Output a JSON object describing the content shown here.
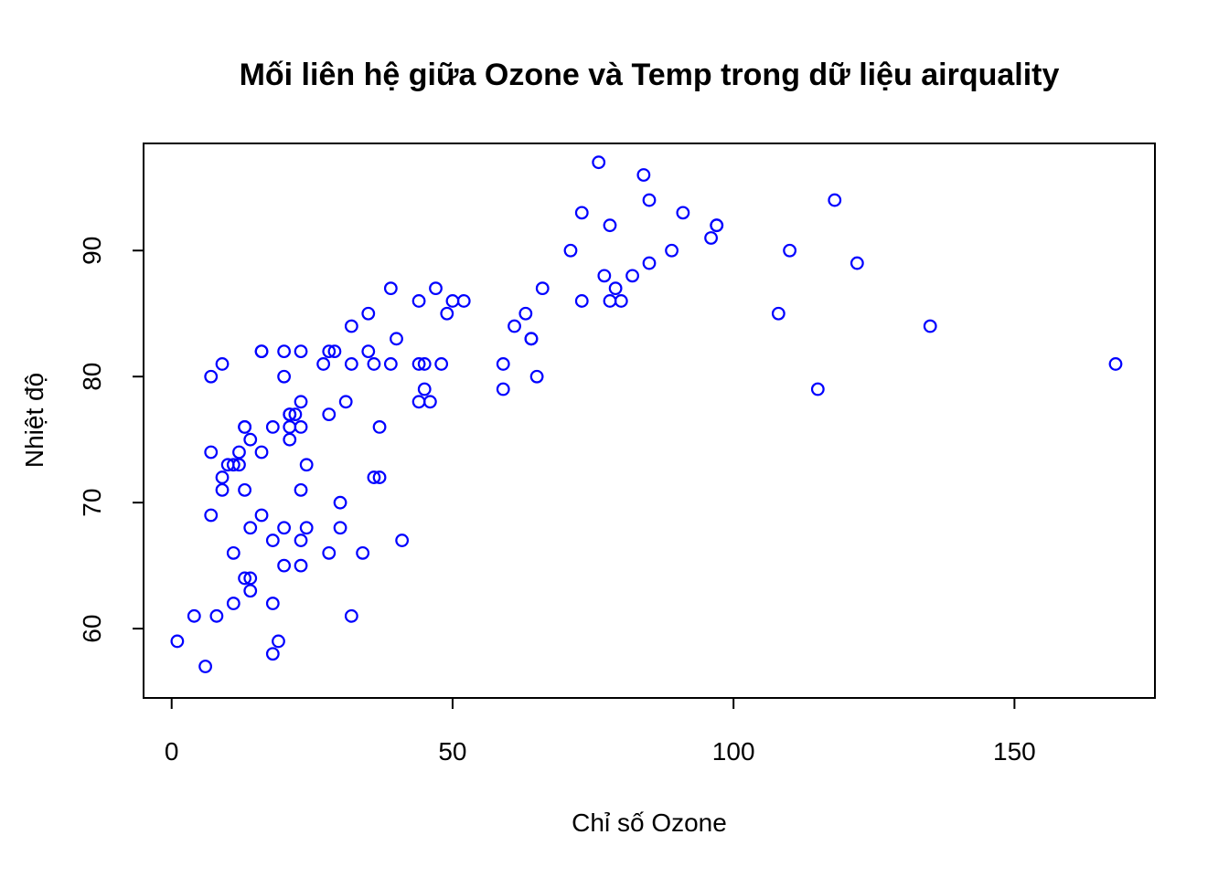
{
  "chart_data": {
    "type": "scatter",
    "title": "Mối liên hệ giữa Ozone và Temp trong dữ liệu airquality",
    "xlabel": "Chỉ số Ozone",
    "ylabel": "Nhiệt độ",
    "xlim": [
      -5,
      175
    ],
    "ylim": [
      54.5,
      98.5
    ],
    "x_ticks": [
      0,
      50,
      100,
      150
    ],
    "y_ticks": [
      60,
      70,
      80,
      90
    ],
    "grid": false,
    "legend": "none",
    "point_color": "#0000ff",
    "points": [
      [
        41,
        67
      ],
      [
        36,
        72
      ],
      [
        12,
        74
      ],
      [
        18,
        62
      ],
      [
        28,
        66
      ],
      [
        23,
        65
      ],
      [
        19,
        59
      ],
      [
        8,
        61
      ],
      [
        7,
        74
      ],
      [
        16,
        69
      ],
      [
        11,
        66
      ],
      [
        14,
        68
      ],
      [
        18,
        58
      ],
      [
        14,
        64
      ],
      [
        34,
        66
      ],
      [
        6,
        57
      ],
      [
        30,
        68
      ],
      [
        11,
        62
      ],
      [
        1,
        59
      ],
      [
        11,
        73
      ],
      [
        4,
        61
      ],
      [
        32,
        61
      ],
      [
        23,
        67
      ],
      [
        45,
        81
      ],
      [
        115,
        79
      ],
      [
        37,
        76
      ],
      [
        29,
        82
      ],
      [
        71,
        90
      ],
      [
        39,
        87
      ],
      [
        23,
        82
      ],
      [
        21,
        77
      ],
      [
        37,
        72
      ],
      [
        20,
        65
      ],
      [
        12,
        73
      ],
      [
        13,
        76
      ],
      [
        135,
        84
      ],
      [
        49,
        85
      ],
      [
        32,
        81
      ],
      [
        64,
        83
      ],
      [
        40,
        83
      ],
      [
        77,
        88
      ],
      [
        97,
        92
      ],
      [
        97,
        92
      ],
      [
        85,
        89
      ],
      [
        10,
        73
      ],
      [
        27,
        81
      ],
      [
        7,
        80
      ],
      [
        48,
        81
      ],
      [
        35,
        82
      ],
      [
        61,
        84
      ],
      [
        79,
        87
      ],
      [
        63,
        85
      ],
      [
        16,
        74
      ],
      [
        80,
        86
      ],
      [
        108,
        85
      ],
      [
        20,
        82
      ],
      [
        52,
        86
      ],
      [
        82,
        88
      ],
      [
        50,
        86
      ],
      [
        64,
        83
      ],
      [
        59,
        81
      ],
      [
        39,
        81
      ],
      [
        9,
        81
      ],
      [
        16,
        82
      ],
      [
        78,
        86
      ],
      [
        35,
        85
      ],
      [
        66,
        87
      ],
      [
        122,
        89
      ],
      [
        89,
        90
      ],
      [
        110,
        90
      ],
      [
        44,
        86
      ],
      [
        28,
        82
      ],
      [
        65,
        80
      ],
      [
        22,
        77
      ],
      [
        59,
        79
      ],
      [
        23,
        76
      ],
      [
        31,
        78
      ],
      [
        44,
        78
      ],
      [
        21,
        77
      ],
      [
        9,
        72
      ],
      [
        45,
        79
      ],
      [
        168,
        81
      ],
      [
        73,
        86
      ],
      [
        76,
        97
      ],
      [
        118,
        94
      ],
      [
        84,
        96
      ],
      [
        85,
        94
      ],
      [
        96,
        91
      ],
      [
        78,
        92
      ],
      [
        73,
        93
      ],
      [
        91,
        93
      ],
      [
        47,
        87
      ],
      [
        32,
        84
      ],
      [
        20,
        80
      ],
      [
        23,
        78
      ],
      [
        21,
        75
      ],
      [
        24,
        73
      ],
      [
        44,
        81
      ],
      [
        21,
        76
      ],
      [
        28,
        77
      ],
      [
        9,
        71
      ],
      [
        13,
        71
      ],
      [
        46,
        78
      ],
      [
        18,
        67
      ],
      [
        13,
        76
      ],
      [
        24,
        68
      ],
      [
        16,
        82
      ],
      [
        13,
        64
      ],
      [
        23,
        71
      ],
      [
        36,
        81
      ],
      [
        7,
        69
      ],
      [
        14,
        63
      ],
      [
        30,
        70
      ],
      [
        14,
        75
      ],
      [
        18,
        76
      ],
      [
        20,
        68
      ]
    ]
  }
}
